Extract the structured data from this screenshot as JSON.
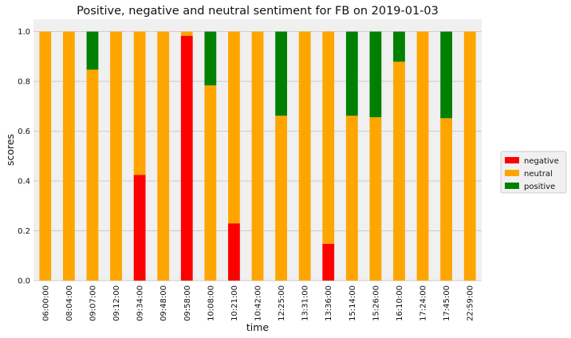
{
  "chart_data": {
    "type": "bar",
    "stacked": true,
    "title": "Positive, negative and neutral sentiment for FB on 2019-01-03",
    "xlabel": "time",
    "ylabel": "scores",
    "ylim": [
      0,
      1.05
    ],
    "yticks": [
      0.0,
      0.2,
      0.4,
      0.6,
      0.8,
      1.0
    ],
    "ytick_labels": [
      "0.0",
      "0.2",
      "0.4",
      "0.6",
      "0.8",
      "1.0"
    ],
    "grid": true,
    "legend_position": "right",
    "categories": [
      "06:00:00",
      "08:04:00",
      "09:07:00",
      "09:12:00",
      "09:34:00",
      "09:48:00",
      "09:58:00",
      "10:08:00",
      "10:21:00",
      "10:42:00",
      "12:25:00",
      "13:31:00",
      "13:36:00",
      "15:14:00",
      "15:26:00",
      "16:10:00",
      "17:24:00",
      "17:45:00",
      "22:59:00"
    ],
    "series": [
      {
        "name": "negative",
        "color": "#ff0000",
        "values": [
          0,
          0,
          0,
          0,
          0.425,
          0,
          0.983,
          0,
          0.23,
          0,
          0,
          0,
          0.148,
          0,
          0,
          0,
          0,
          0,
          0
        ]
      },
      {
        "name": "neutral",
        "color": "#ffa500",
        "values": [
          1.0,
          1.0,
          0.847,
          1.0,
          0.575,
          1.0,
          0.017,
          0.784,
          0.77,
          1.0,
          0.662,
          1.0,
          0.852,
          0.662,
          0.656,
          0.879,
          1.0,
          0.652,
          1.0
        ]
      },
      {
        "name": "positive",
        "color": "#008000",
        "values": [
          0,
          0,
          0.153,
          0,
          0,
          0,
          0,
          0.216,
          0,
          0,
          0.338,
          0,
          0,
          0.338,
          0.344,
          0.121,
          0,
          0.348,
          0
        ]
      }
    ]
  }
}
